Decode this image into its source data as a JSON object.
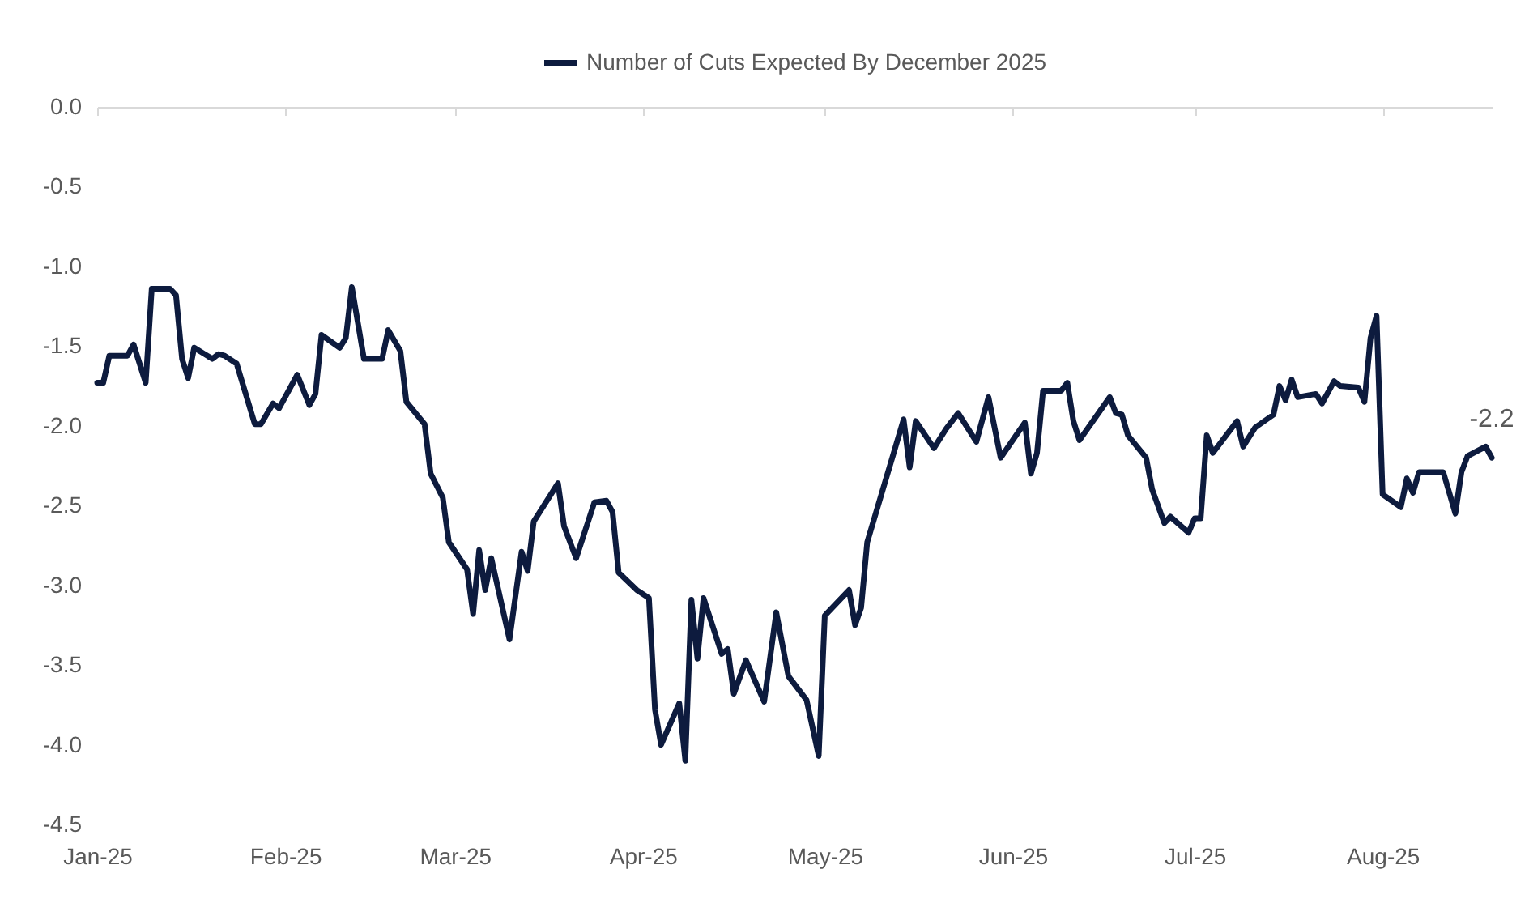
{
  "chart_data": {
    "type": "line",
    "x": [
      "2025-01-01",
      "2025-01-02",
      "2025-01-03",
      "2025-01-06",
      "2025-01-07",
      "2025-01-09",
      "2025-01-10",
      "2025-01-13",
      "2025-01-14",
      "2025-01-15",
      "2025-01-16",
      "2025-01-17",
      "2025-01-20",
      "2025-01-21",
      "2025-01-22",
      "2025-01-24",
      "2025-01-27",
      "2025-01-28",
      "2025-01-30",
      "2025-01-31",
      "2025-02-03",
      "2025-02-05",
      "2025-02-06",
      "2025-02-07",
      "2025-02-10",
      "2025-02-11",
      "2025-02-12",
      "2025-02-14",
      "2025-02-17",
      "2025-02-18",
      "2025-02-20",
      "2025-02-21",
      "2025-02-24",
      "2025-02-25",
      "2025-02-27",
      "2025-02-28",
      "2025-03-03",
      "2025-03-04",
      "2025-03-05",
      "2025-03-06",
      "2025-03-07",
      "2025-03-10",
      "2025-03-12",
      "2025-03-13",
      "2025-03-14",
      "2025-03-18",
      "2025-03-19",
      "2025-03-21",
      "2025-03-24",
      "2025-03-26",
      "2025-03-27",
      "2025-03-28",
      "2025-03-31",
      "2025-04-02",
      "2025-04-03",
      "2025-04-04",
      "2025-04-07",
      "2025-04-08",
      "2025-04-09",
      "2025-04-10",
      "2025-04-11",
      "2025-04-14",
      "2025-04-15",
      "2025-04-16",
      "2025-04-18",
      "2025-04-21",
      "2025-04-23",
      "2025-04-25",
      "2025-04-28",
      "2025-04-30",
      "2025-05-01",
      "2025-05-05",
      "2025-05-06",
      "2025-05-07",
      "2025-05-08",
      "2025-05-14",
      "2025-05-15",
      "2025-05-16",
      "2025-05-19",
      "2025-05-21",
      "2025-05-23",
      "2025-05-26",
      "2025-05-28",
      "2025-05-30",
      "2025-06-03",
      "2025-06-04",
      "2025-06-05",
      "2025-06-06",
      "2025-06-09",
      "2025-06-10",
      "2025-06-11",
      "2025-06-12",
      "2025-06-17",
      "2025-06-18",
      "2025-06-19",
      "2025-06-20",
      "2025-06-23",
      "2025-06-24",
      "2025-06-26",
      "2025-06-27",
      "2025-06-30",
      "2025-07-01",
      "2025-07-02",
      "2025-07-03",
      "2025-07-04",
      "2025-07-08",
      "2025-07-09",
      "2025-07-11",
      "2025-07-14",
      "2025-07-15",
      "2025-07-16",
      "2025-07-17",
      "2025-07-18",
      "2025-07-21",
      "2025-07-22",
      "2025-07-24",
      "2025-07-25",
      "2025-07-28",
      "2025-07-29",
      "2025-07-30",
      "2025-07-31",
      "2025-08-01",
      "2025-08-04",
      "2025-08-05",
      "2025-08-06",
      "2025-08-07",
      "2025-08-11",
      "2025-08-13",
      "2025-08-14",
      "2025-08-15",
      "2025-08-18",
      "2025-08-19"
    ],
    "series": [
      {
        "name": "Number of Cuts Expected By December 2025",
        "color": "#0d1b3e",
        "values": [
          -1.73,
          -1.73,
          -1.56,
          -1.56,
          -1.49,
          -1.73,
          -1.14,
          -1.14,
          -1.18,
          -1.58,
          -1.7,
          -1.51,
          -1.58,
          -1.55,
          -1.56,
          -1.61,
          -1.99,
          -1.99,
          -1.86,
          -1.89,
          -1.68,
          -1.87,
          -1.8,
          -1.43,
          -1.51,
          -1.45,
          -1.13,
          -1.58,
          -1.58,
          -1.4,
          -1.53,
          -1.85,
          -1.99,
          -2.3,
          -2.45,
          -2.73,
          -2.9,
          -3.18,
          -2.78,
          -3.03,
          -2.83,
          -3.34,
          -2.79,
          -2.91,
          -2.6,
          -2.36,
          -2.63,
          -2.83,
          -2.48,
          -2.47,
          -2.54,
          -2.92,
          -3.03,
          -3.08,
          -3.78,
          -4.0,
          -3.74,
          -4.1,
          -3.09,
          -3.46,
          -3.08,
          -3.43,
          -3.4,
          -3.68,
          -3.47,
          -3.73,
          -3.17,
          -3.57,
          -3.72,
          -4.07,
          -3.19,
          -3.03,
          -3.25,
          -3.14,
          -2.73,
          -1.96,
          -2.26,
          -1.97,
          -2.14,
          -2.02,
          -1.92,
          -2.1,
          -1.82,
          -2.2,
          -1.98,
          -2.3,
          -2.17,
          -1.78,
          -1.78,
          -1.73,
          -1.97,
          -2.09,
          -1.82,
          -1.92,
          -1.93,
          -2.06,
          -2.2,
          -2.4,
          -2.61,
          -2.57,
          -2.67,
          -2.58,
          -2.58,
          -2.06,
          -2.17,
          -1.97,
          -2.13,
          -2.01,
          -1.93,
          -1.75,
          -1.84,
          -1.71,
          -1.82,
          -1.8,
          -1.86,
          -1.72,
          -1.75,
          -1.76,
          -1.85,
          -1.45,
          -1.31,
          -2.43,
          -2.51,
          -2.33,
          -2.42,
          -2.29,
          -2.29,
          -2.55,
          -2.29,
          -2.19,
          -2.13,
          -2.2
        ]
      }
    ],
    "xlim": [
      "2025-01-01",
      "2025-08-19"
    ],
    "xticks": [
      {
        "value": "2025-01-01",
        "label": "Jan-25"
      },
      {
        "value": "2025-02-01",
        "label": "Feb-25"
      },
      {
        "value": "2025-03-01",
        "label": "Mar-25"
      },
      {
        "value": "2025-04-01",
        "label": "Apr-25"
      },
      {
        "value": "2025-05-01",
        "label": "May-25"
      },
      {
        "value": "2025-06-01",
        "label": "Jun-25"
      },
      {
        "value": "2025-07-01",
        "label": "Jul-25"
      },
      {
        "value": "2025-08-01",
        "label": "Aug-25"
      }
    ],
    "ylim": [
      -4.5,
      0
    ],
    "yticks": [
      {
        "value": 0,
        "label": "0.0"
      },
      {
        "value": -0.5,
        "label": "-0.5"
      },
      {
        "value": -1,
        "label": "-1.0"
      },
      {
        "value": -1.5,
        "label": "-1.5"
      },
      {
        "value": -2,
        "label": "-2.0"
      },
      {
        "value": -2.5,
        "label": "-2.5"
      },
      {
        "value": -3,
        "label": "-3.0"
      },
      {
        "value": -3.5,
        "label": "-3.5"
      },
      {
        "value": -4,
        "label": "-4.0"
      },
      {
        "value": -4.5,
        "label": "-4.5"
      }
    ],
    "annotations": [
      {
        "text": "-2.2",
        "x": "2025-08-19",
        "y": -2.2
      }
    ],
    "legend": "top",
    "grid": false,
    "line_style": "solid",
    "marker": "none"
  }
}
